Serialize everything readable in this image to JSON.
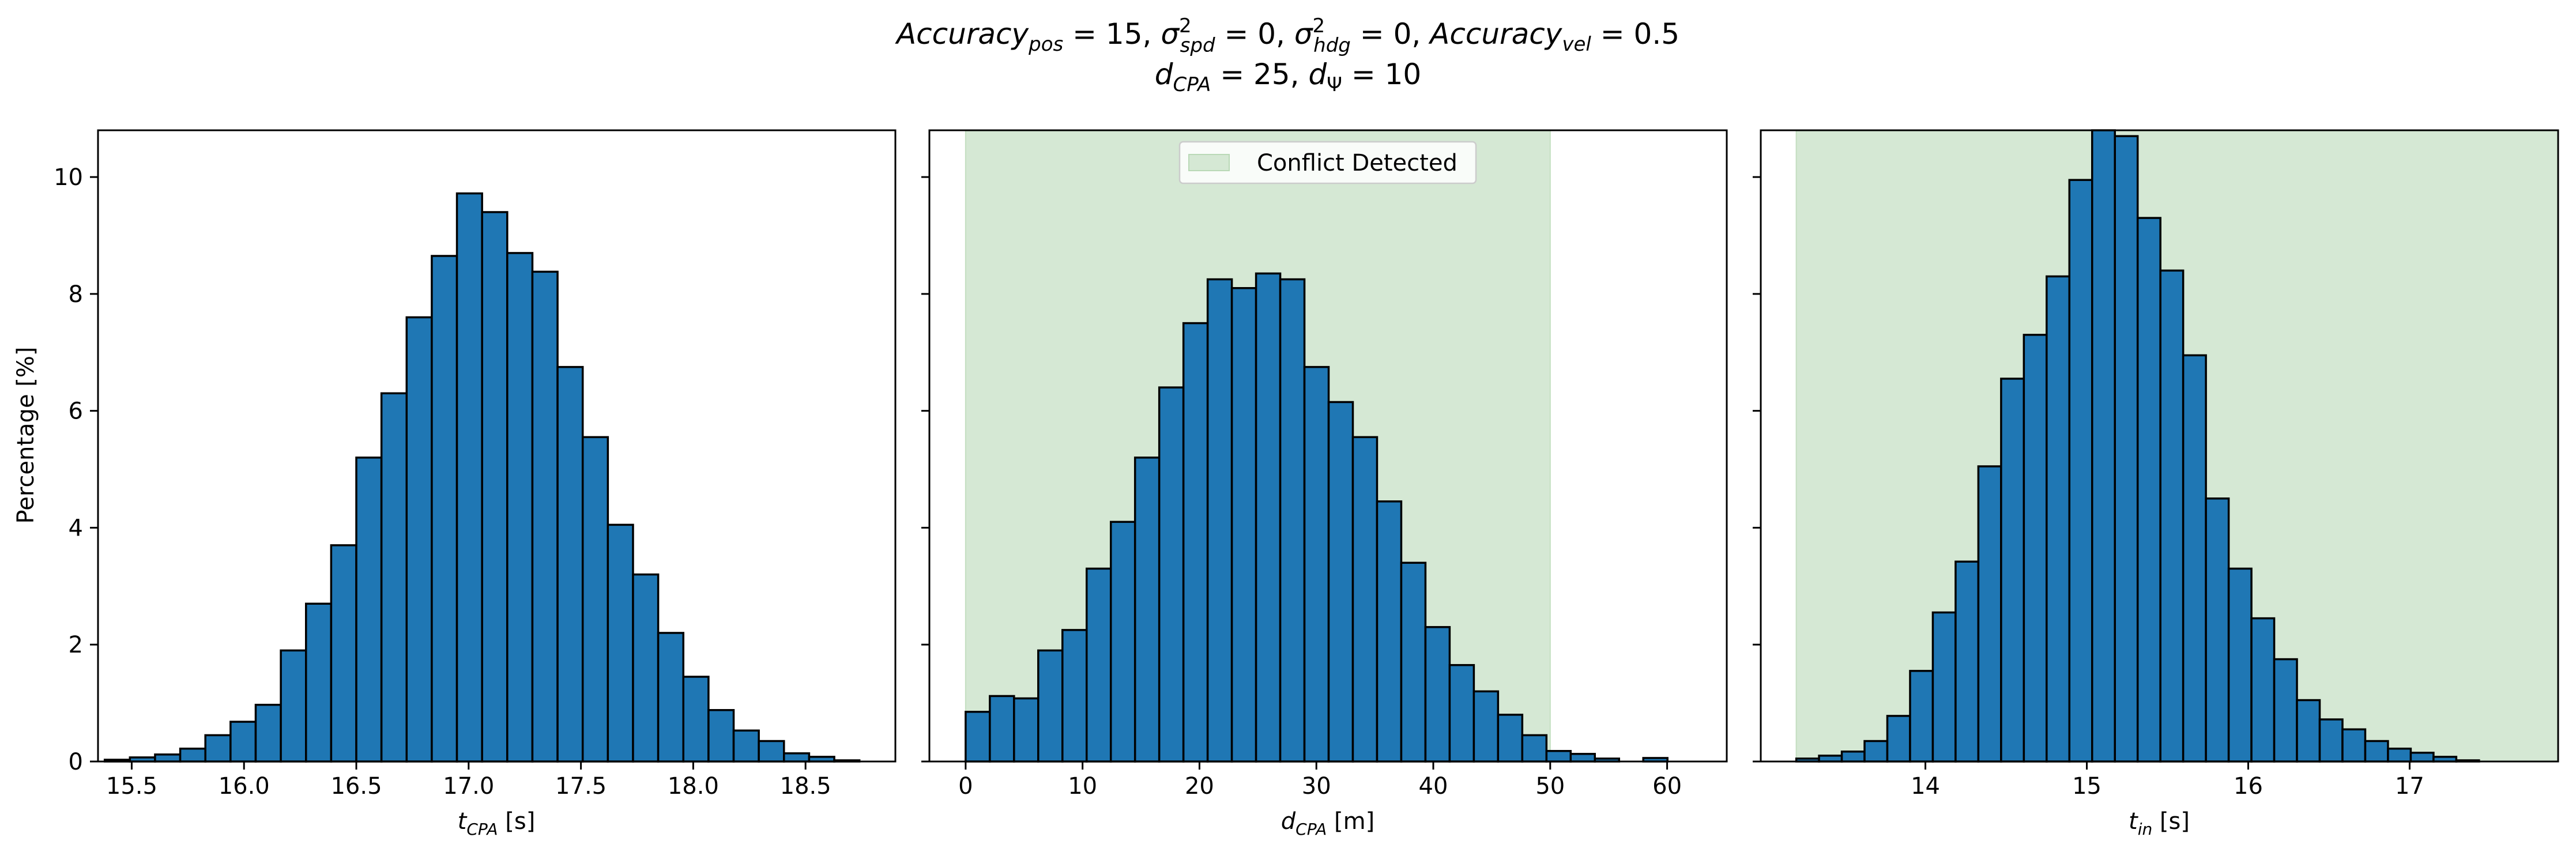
{
  "figure": {
    "title_line1": "Accuracy_pos = 15, σ²_spd = 0, σ²_hdg = 0, Accuracy_vel = 0.5",
    "title_line2": "d_CPA = 25, d_Ψ = 10",
    "legend_label": "Conflict Detected",
    "colors": {
      "bar": "#1f77b4",
      "edge": "#000000",
      "conflict_region": "#d5e8d4"
    }
  },
  "chart_data": [
    {
      "type": "bar",
      "xlabel": "t_CPA [s]",
      "ylabel": "Percentage [%]",
      "xlim": [
        15.35,
        18.9
      ],
      "ylim": [
        0,
        10.8
      ],
      "xticks": [
        "15.5",
        "16.0",
        "16.5",
        "17.0",
        "17.5",
        "18.0",
        "18.5"
      ],
      "xtick_values": [
        15.5,
        16.0,
        16.5,
        17.0,
        17.5,
        18.0,
        18.5
      ],
      "yticks": [
        "0",
        "2",
        "4",
        "6",
        "8",
        "10"
      ],
      "ytick_values": [
        0,
        2,
        4,
        6,
        8,
        10
      ],
      "bin_start": 15.38,
      "bin_width": 0.112,
      "values": [
        0.03,
        0.07,
        0.12,
        0.22,
        0.45,
        0.68,
        0.97,
        1.9,
        2.7,
        3.7,
        5.2,
        6.3,
        7.6,
        8.65,
        9.72,
        9.4,
        8.7,
        8.38,
        6.75,
        5.55,
        4.05,
        3.2,
        2.2,
        1.45,
        0.88,
        0.53,
        0.35,
        0.14,
        0.08,
        0.02
      ],
      "conflict_region": null
    },
    {
      "type": "bar",
      "xlabel": "d_CPA [m]",
      "ylabel": "",
      "xlim": [
        -3.1,
        65.1
      ],
      "ylim": [
        0,
        10.8
      ],
      "xticks": [
        "0",
        "10",
        "20",
        "30",
        "40",
        "50",
        "60"
      ],
      "xtick_values": [
        0,
        10,
        20,
        30,
        40,
        50,
        60
      ],
      "yticks": [],
      "ytick_values": [
        0,
        2,
        4,
        6,
        8,
        10
      ],
      "bin_start": 0,
      "bin_width": 2.07,
      "values": [
        0.85,
        1.12,
        1.08,
        1.9,
        2.25,
        3.3,
        4.1,
        5.2,
        6.4,
        7.5,
        8.25,
        8.1,
        8.35,
        8.25,
        6.75,
        6.15,
        5.55,
        4.45,
        3.4,
        2.3,
        1.65,
        1.2,
        0.8,
        0.45,
        0.18,
        0.13,
        0.05,
        0.0,
        0.06
      ],
      "conflict_region": [
        0,
        50
      ]
    },
    {
      "type": "bar",
      "xlabel": "t_in [s]",
      "ylabel": "",
      "xlim": [
        12.98,
        17.92
      ],
      "ylim": [
        0,
        10.8
      ],
      "xticks": [
        "14",
        "15",
        "16",
        "17"
      ],
      "xtick_values": [
        14,
        15,
        16,
        17
      ],
      "yticks": [],
      "ytick_values": [
        0,
        2,
        4,
        6,
        8,
        10
      ],
      "bin_start": 13.2,
      "bin_width": 0.141,
      "values": [
        0.05,
        0.1,
        0.17,
        0.35,
        0.78,
        1.55,
        2.55,
        3.42,
        5.05,
        6.55,
        7.3,
        8.3,
        9.95,
        11.7,
        10.7,
        9.3,
        8.4,
        6.95,
        4.5,
        3.3,
        2.45,
        1.75,
        1.05,
        0.72,
        0.55,
        0.35,
        0.22,
        0.15,
        0.08,
        0.02
      ],
      "conflict_region": [
        13.2,
        17.92
      ]
    }
  ]
}
